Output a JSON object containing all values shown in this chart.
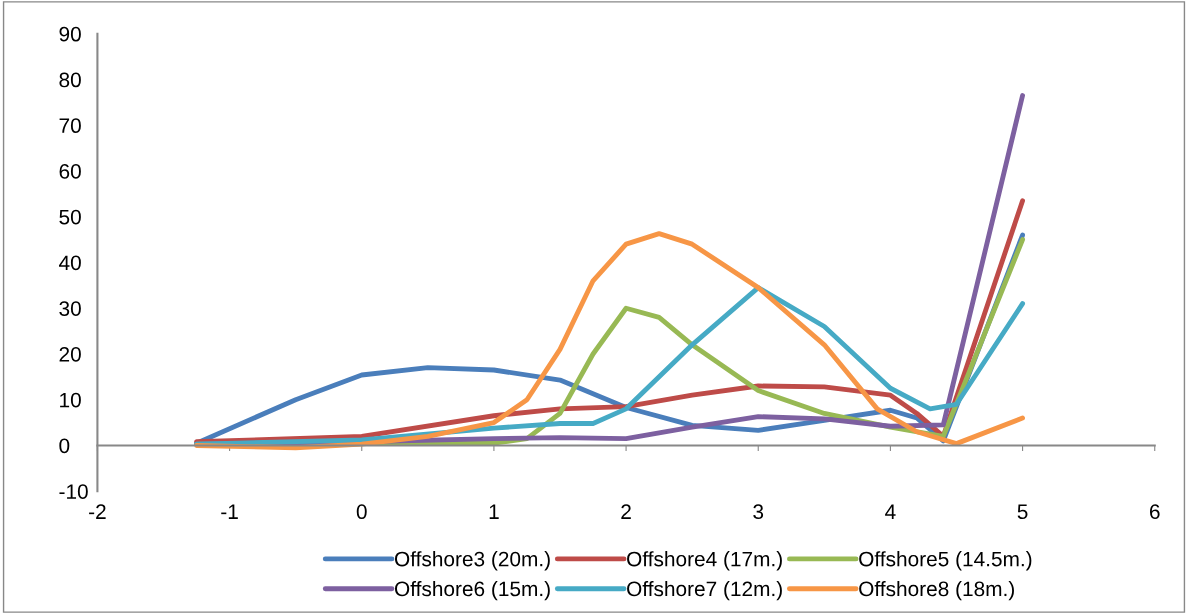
{
  "chart_data": {
    "type": "line",
    "series": [
      {
        "name": "Offshore3 (20m.)",
        "color": "#4a7ebb",
        "x": [
          -1.25,
          -0.5,
          0,
          0.5,
          1,
          1.5,
          2,
          2.5,
          3,
          3.5,
          4,
          4.2,
          4.4,
          5
        ],
        "values": [
          0.5,
          10,
          15.4,
          17,
          16.5,
          14.3,
          8.3,
          4.4,
          3.3,
          5.5,
          7.7,
          6,
          1,
          46
        ]
      },
      {
        "name": "Offshore4 (17m.)",
        "color": "#be4b48",
        "x": [
          -1.25,
          0,
          1,
          1.5,
          2,
          2.5,
          3,
          3.5,
          4,
          4.2,
          4.4,
          5
        ],
        "values": [
          0.8,
          2,
          6.5,
          8,
          8.5,
          11,
          13,
          12.8,
          11,
          7,
          2,
          53.5
        ]
      },
      {
        "name": "Offshore5 (14.5m.)",
        "color": "#98b954",
        "x": [
          -1.25,
          0,
          1,
          1.25,
          1.5,
          1.75,
          2,
          2.25,
          2.5,
          3,
          3.5,
          4,
          4.4,
          5
        ],
        "values": [
          0.3,
          0.5,
          0.5,
          1.5,
          7,
          20,
          30,
          28,
          22,
          12,
          7,
          4,
          2,
          45
        ]
      },
      {
        "name": "Offshore6 (15m.)",
        "color": "#7d60a0",
        "x": [
          -1.25,
          0,
          1,
          1.5,
          2,
          2.5,
          3,
          3.5,
          4,
          4.4,
          5
        ],
        "values": [
          0.3,
          0.8,
          1.5,
          1.7,
          1.5,
          4,
          6.3,
          5.8,
          4.2,
          4.5,
          76.5
        ]
      },
      {
        "name": "Offshore7 (12m.)",
        "color": "#46aac5",
        "x": [
          -1.25,
          0,
          1,
          1.5,
          1.75,
          2,
          2.5,
          3,
          3.5,
          4,
          4.3,
          4.5,
          5
        ],
        "values": [
          0.3,
          1.2,
          3.8,
          4.8,
          4.8,
          8,
          22,
          34.5,
          26,
          12.5,
          8,
          9,
          31
        ]
      },
      {
        "name": "Offshore8 (18m.)",
        "color": "#f79646",
        "x": [
          -1.25,
          -0.5,
          0,
          0.5,
          1,
          1.25,
          1.5,
          1.75,
          2,
          2.25,
          2.5,
          3,
          3.5,
          3.9,
          4.2,
          4.5,
          5
        ],
        "values": [
          0,
          -0.5,
          0.3,
          2,
          5,
          10,
          21,
          36,
          44,
          46.3,
          44,
          34.5,
          22,
          8,
          3,
          0.4,
          6
        ]
      }
    ],
    "xlim": [
      -2,
      6
    ],
    "xticks": [
      -2,
      -1,
      0,
      1,
      2,
      3,
      4,
      5,
      6
    ],
    "ylim": [
      -10,
      90
    ],
    "yticks": [
      -10,
      0,
      10,
      20,
      30,
      40,
      50,
      60,
      70,
      80,
      90
    ],
    "legend": "bottom",
    "marker": "none",
    "line_style": "solid"
  }
}
